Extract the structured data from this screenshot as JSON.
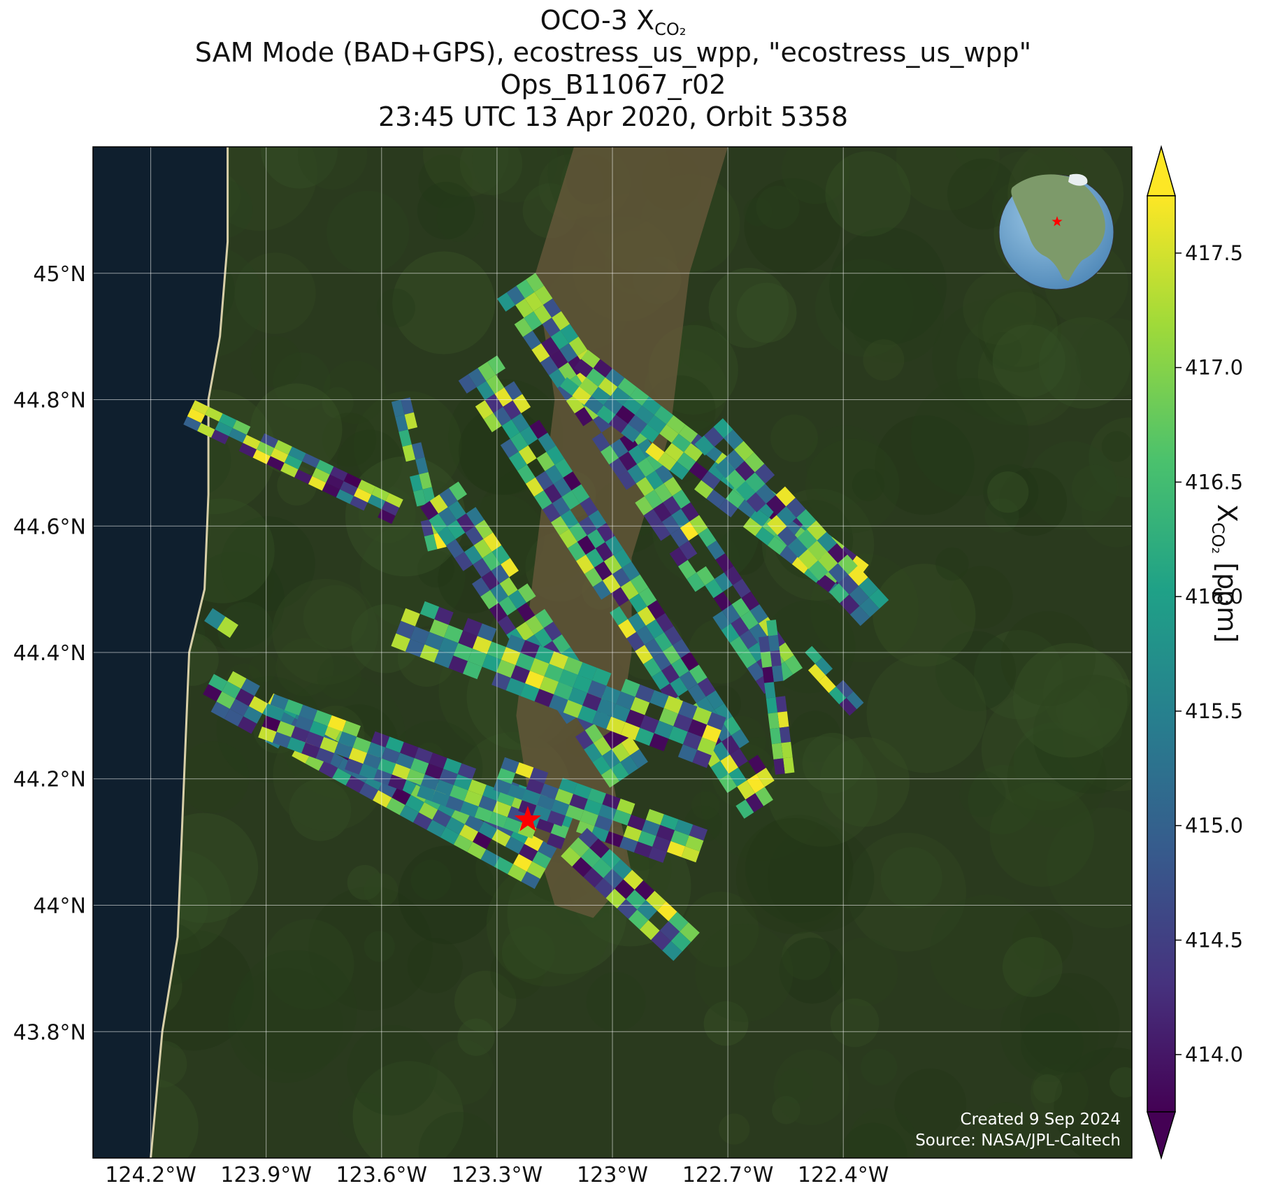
{
  "title": {
    "prefix": "OCO-3 X",
    "sub": "CO₂",
    "line2": "SAM Mode (BAD+GPS), ecostress_us_wpp, \"ecostress_us_wpp\"",
    "line3": "Ops_B11067_r02",
    "line4": "23:45 UTC 13 Apr 2020, Orbit 5358"
  },
  "map": {
    "lon_range": [
      -124.35,
      -121.65
    ],
    "lat_range": [
      43.6,
      45.2
    ],
    "lon_ticks": [
      -124.2,
      -123.9,
      -123.6,
      -123.3,
      -123.0,
      -122.7,
      -122.4
    ],
    "lon_tick_labels": [
      "124.2°W",
      "123.9°W",
      "123.6°W",
      "123.3°W",
      "123°W",
      "122.7°W",
      "122.4°W"
    ],
    "lat_ticks": [
      45.0,
      44.8,
      44.6,
      44.4,
      44.2,
      44.0,
      43.8
    ],
    "lat_tick_labels": [
      "45°N",
      "44.8°N",
      "44.6°N",
      "44.4°N",
      "44.2°N",
      "44°N",
      "43.8°N"
    ],
    "gridlines": true,
    "target_marker": {
      "lon": -123.22,
      "lat": 44.135,
      "color": "#ff0000"
    },
    "ocean_color": "#0f1f2e",
    "land_color": "#2a3a1e",
    "valley_color": "#6a5a3c"
  },
  "colorbar": {
    "min": 413.75,
    "max": 417.75,
    "ticks": [
      414.0,
      414.5,
      415.0,
      415.5,
      416.0,
      416.5,
      417.0,
      417.5
    ],
    "tick_labels": [
      "414.0",
      "414.5",
      "415.0",
      "415.5",
      "416.0",
      "416.5",
      "417.0",
      "417.5"
    ],
    "extend": "both",
    "colormap": "viridis",
    "label_prefix": "X",
    "label_sub": "CO₂",
    "label_suffix": " [ppm]"
  },
  "credits": {
    "created": "Created 9 Sep 2024",
    "source": "Source: NASA/JPL-Caltech"
  },
  "inset_globe": {
    "marker_color": "#ff0000",
    "ocean": "#5e9ccc",
    "land": "#7d9a6a"
  },
  "chart_data": {
    "type": "heatmap",
    "title": "OCO-3 XCO2",
    "x": "longitude",
    "y": "latitude",
    "value_units": "ppm",
    "xlim": [
      -124.35,
      -121.65
    ],
    "ylim": [
      43.6,
      45.2
    ],
    "vlim": [
      413.75,
      417.75
    ],
    "swaths": [
      {
        "start": [
          -124.1,
          44.78
        ],
        "end": [
          -123.55,
          44.62
        ],
        "width": 0.07,
        "rows": 3
      },
      {
        "start": [
          -123.55,
          44.8
        ],
        "end": [
          -123.45,
          44.55
        ],
        "width": 0.05,
        "rows": 2
      },
      {
        "start": [
          -123.25,
          44.98
        ],
        "end": [
          -122.55,
          44.35
        ],
        "width": 0.12,
        "rows": 4
      },
      {
        "start": [
          -123.35,
          44.85
        ],
        "end": [
          -122.6,
          44.15
        ],
        "width": 0.12,
        "rows": 4
      },
      {
        "start": [
          -123.1,
          44.85
        ],
        "end": [
          -122.35,
          44.5
        ],
        "width": 0.12,
        "rows": 4
      },
      {
        "start": [
          -122.75,
          44.75
        ],
        "end": [
          -122.3,
          44.45
        ],
        "width": 0.1,
        "rows": 3
      },
      {
        "start": [
          -123.45,
          44.65
        ],
        "end": [
          -122.95,
          44.2
        ],
        "width": 0.12,
        "rows": 4
      },
      {
        "start": [
          -123.55,
          44.45
        ],
        "end": [
          -122.7,
          44.25
        ],
        "width": 0.14,
        "rows": 4
      },
      {
        "start": [
          -124.05,
          44.35
        ],
        "end": [
          -123.15,
          44.05
        ],
        "width": 0.12,
        "rows": 4
      },
      {
        "start": [
          -123.9,
          44.3
        ],
        "end": [
          -123.1,
          44.12
        ],
        "width": 0.12,
        "rows": 4
      },
      {
        "start": [
          -123.3,
          44.2
        ],
        "end": [
          -122.75,
          44.08
        ],
        "width": 0.12,
        "rows": 4
      },
      {
        "start": [
          -123.1,
          44.1
        ],
        "end": [
          -122.8,
          43.93
        ],
        "width": 0.1,
        "rows": 3
      },
      {
        "start": [
          -122.6,
          44.45
        ],
        "end": [
          -122.55,
          44.2
        ],
        "width": 0.05,
        "rows": 2
      },
      {
        "start": [
          -122.5,
          44.4
        ],
        "end": [
          -122.35,
          44.3
        ],
        "width": 0.05,
        "rows": 2
      },
      {
        "start": [
          -124.05,
          44.46
        ],
        "end": [
          -123.95,
          44.42
        ],
        "width": 0.04,
        "rows": 1
      }
    ],
    "value_distribution": "spatially varying XCO2 soundings spanning roughly 414.0 to 417.7 ppm"
  }
}
